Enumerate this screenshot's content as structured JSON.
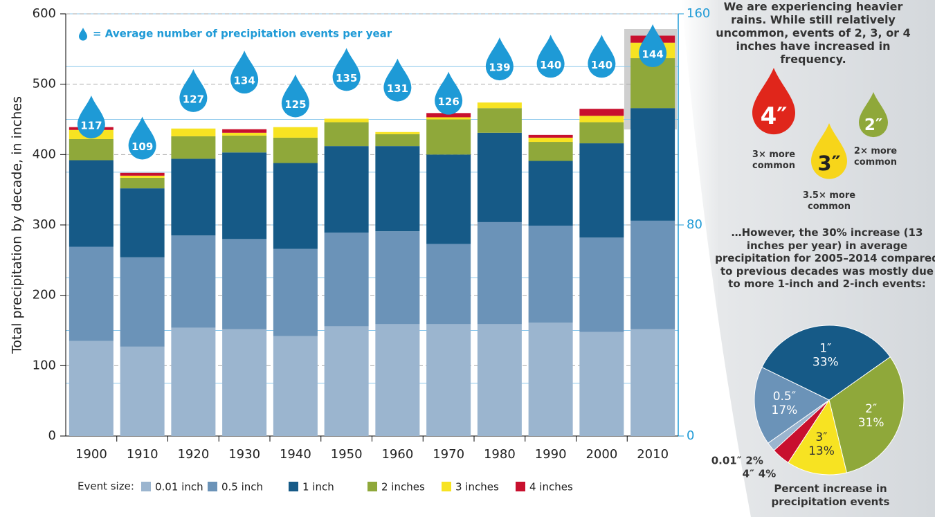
{
  "chart_data": [
    {
      "type": "bar",
      "stacked": true,
      "y_label": "Total precipitation by decade, in inches",
      "categories": [
        "1900",
        "1910",
        "1920",
        "1930",
        "1940",
        "1950",
        "1960",
        "1970",
        "1980",
        "1990",
        "2000",
        "2010"
      ],
      "legend_title": "Event size:",
      "series": [
        {
          "name": "0.01 inch",
          "color": "#9bb5cf",
          "values": [
            135,
            127,
            154,
            152,
            142,
            156,
            159,
            159,
            159,
            161,
            148,
            152
          ]
        },
        {
          "name": "0.5 inch",
          "color": "#6b93b8",
          "values": [
            134,
            127,
            131,
            128,
            124,
            133,
            132,
            114,
            145,
            138,
            134,
            154
          ]
        },
        {
          "name": "1 inch",
          "color": "#165a87",
          "values": [
            123,
            98,
            109,
            123,
            122,
            123,
            121,
            127,
            127,
            92,
            134,
            160
          ]
        },
        {
          "name": "2 inches",
          "color": "#8fa83a",
          "values": [
            30,
            15,
            32,
            24,
            36,
            34,
            17,
            50,
            35,
            27,
            30,
            71
          ]
        },
        {
          "name": "3 inches",
          "color": "#f7e322",
          "values": [
            13,
            3,
            11,
            4,
            15,
            5,
            3,
            3,
            8,
            6,
            9,
            22
          ]
        },
        {
          "name": "4 inches",
          "color": "#c8102e",
          "values": [
            4,
            4,
            0,
            5,
            0,
            0,
            0,
            6,
            0,
            4,
            10,
            10
          ]
        },
        {
          "name": "= Average number of precipitation events per year",
          "color": "#1e9ad6",
          "axis": "y2",
          "marker": "drop",
          "values": [
            117,
            109,
            127,
            134,
            125,
            135,
            131,
            126,
            139,
            140,
            140,
            144
          ]
        }
      ],
      "ylim": [
        0,
        600
      ],
      "yticks": [
        0,
        100,
        200,
        300,
        400,
        500,
        600
      ],
      "y2lim": [
        0,
        160
      ],
      "y2ticks": [
        0,
        80,
        160
      ],
      "y2grid": [
        20,
        40,
        60,
        80,
        100,
        120,
        140,
        160
      ],
      "grid": true
    },
    {
      "type": "pie",
      "intro": "We are experiencing heavier rains. While still relatively uncommon, events of 2, 3, or 4 inches  have increased in frequency.",
      "drops": [
        {
          "label": "4″",
          "note": "3× more common",
          "color": "#e0261b"
        },
        {
          "label": "3″",
          "note": "3.5× more common",
          "color": "#f7d51a"
        },
        {
          "label": "2″",
          "note": "2× more common",
          "color": "#8fa83a"
        }
      ],
      "subtitle": "…However, the 30% increase (13 inches per year) in average precipitation for 2005–2014 compared to previous decades was mostly due to more 1-inch and 2-inch events:",
      "title": "Percent increase in precipitation events",
      "categories": [
        "1″",
        "2″",
        "3″",
        "4″",
        "0.01″",
        "0.5″"
      ],
      "values": [
        33,
        31,
        13,
        4,
        2,
        17
      ],
      "value_labels": [
        "33%",
        "31%",
        "13%",
        "4%",
        "2%",
        "17%"
      ],
      "colors": [
        "#165a87",
        "#8fa83a",
        "#f7e322",
        "#c8102e",
        "#9bb5cf",
        "#6b93b8"
      ]
    }
  ]
}
